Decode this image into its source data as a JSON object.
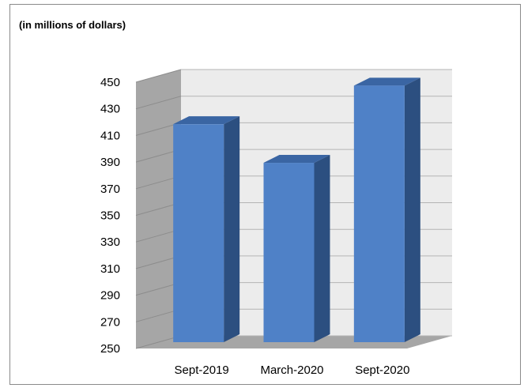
{
  "chart_data": {
    "type": "bar",
    "style": "3d-column",
    "subtitle": "(in millions of dollars)",
    "categories": [
      "Sept-2019",
      "March-2020",
      "Sept-2020"
    ],
    "values": [
      422,
      393,
      451
    ],
    "ylim": [
      250,
      450
    ],
    "yticks": [
      250,
      270,
      290,
      310,
      330,
      350,
      370,
      390,
      410,
      430,
      450
    ],
    "grid": true,
    "legend": "none",
    "colors": {
      "bar_front": "#4f81c7",
      "bar_side": "#2c4f80",
      "bar_top": "#3a65a3",
      "back_wall": "#ececec",
      "side_wall": "#a6a6a6",
      "floor": "#a6a6a6",
      "grid": "#b4b4b4"
    }
  }
}
